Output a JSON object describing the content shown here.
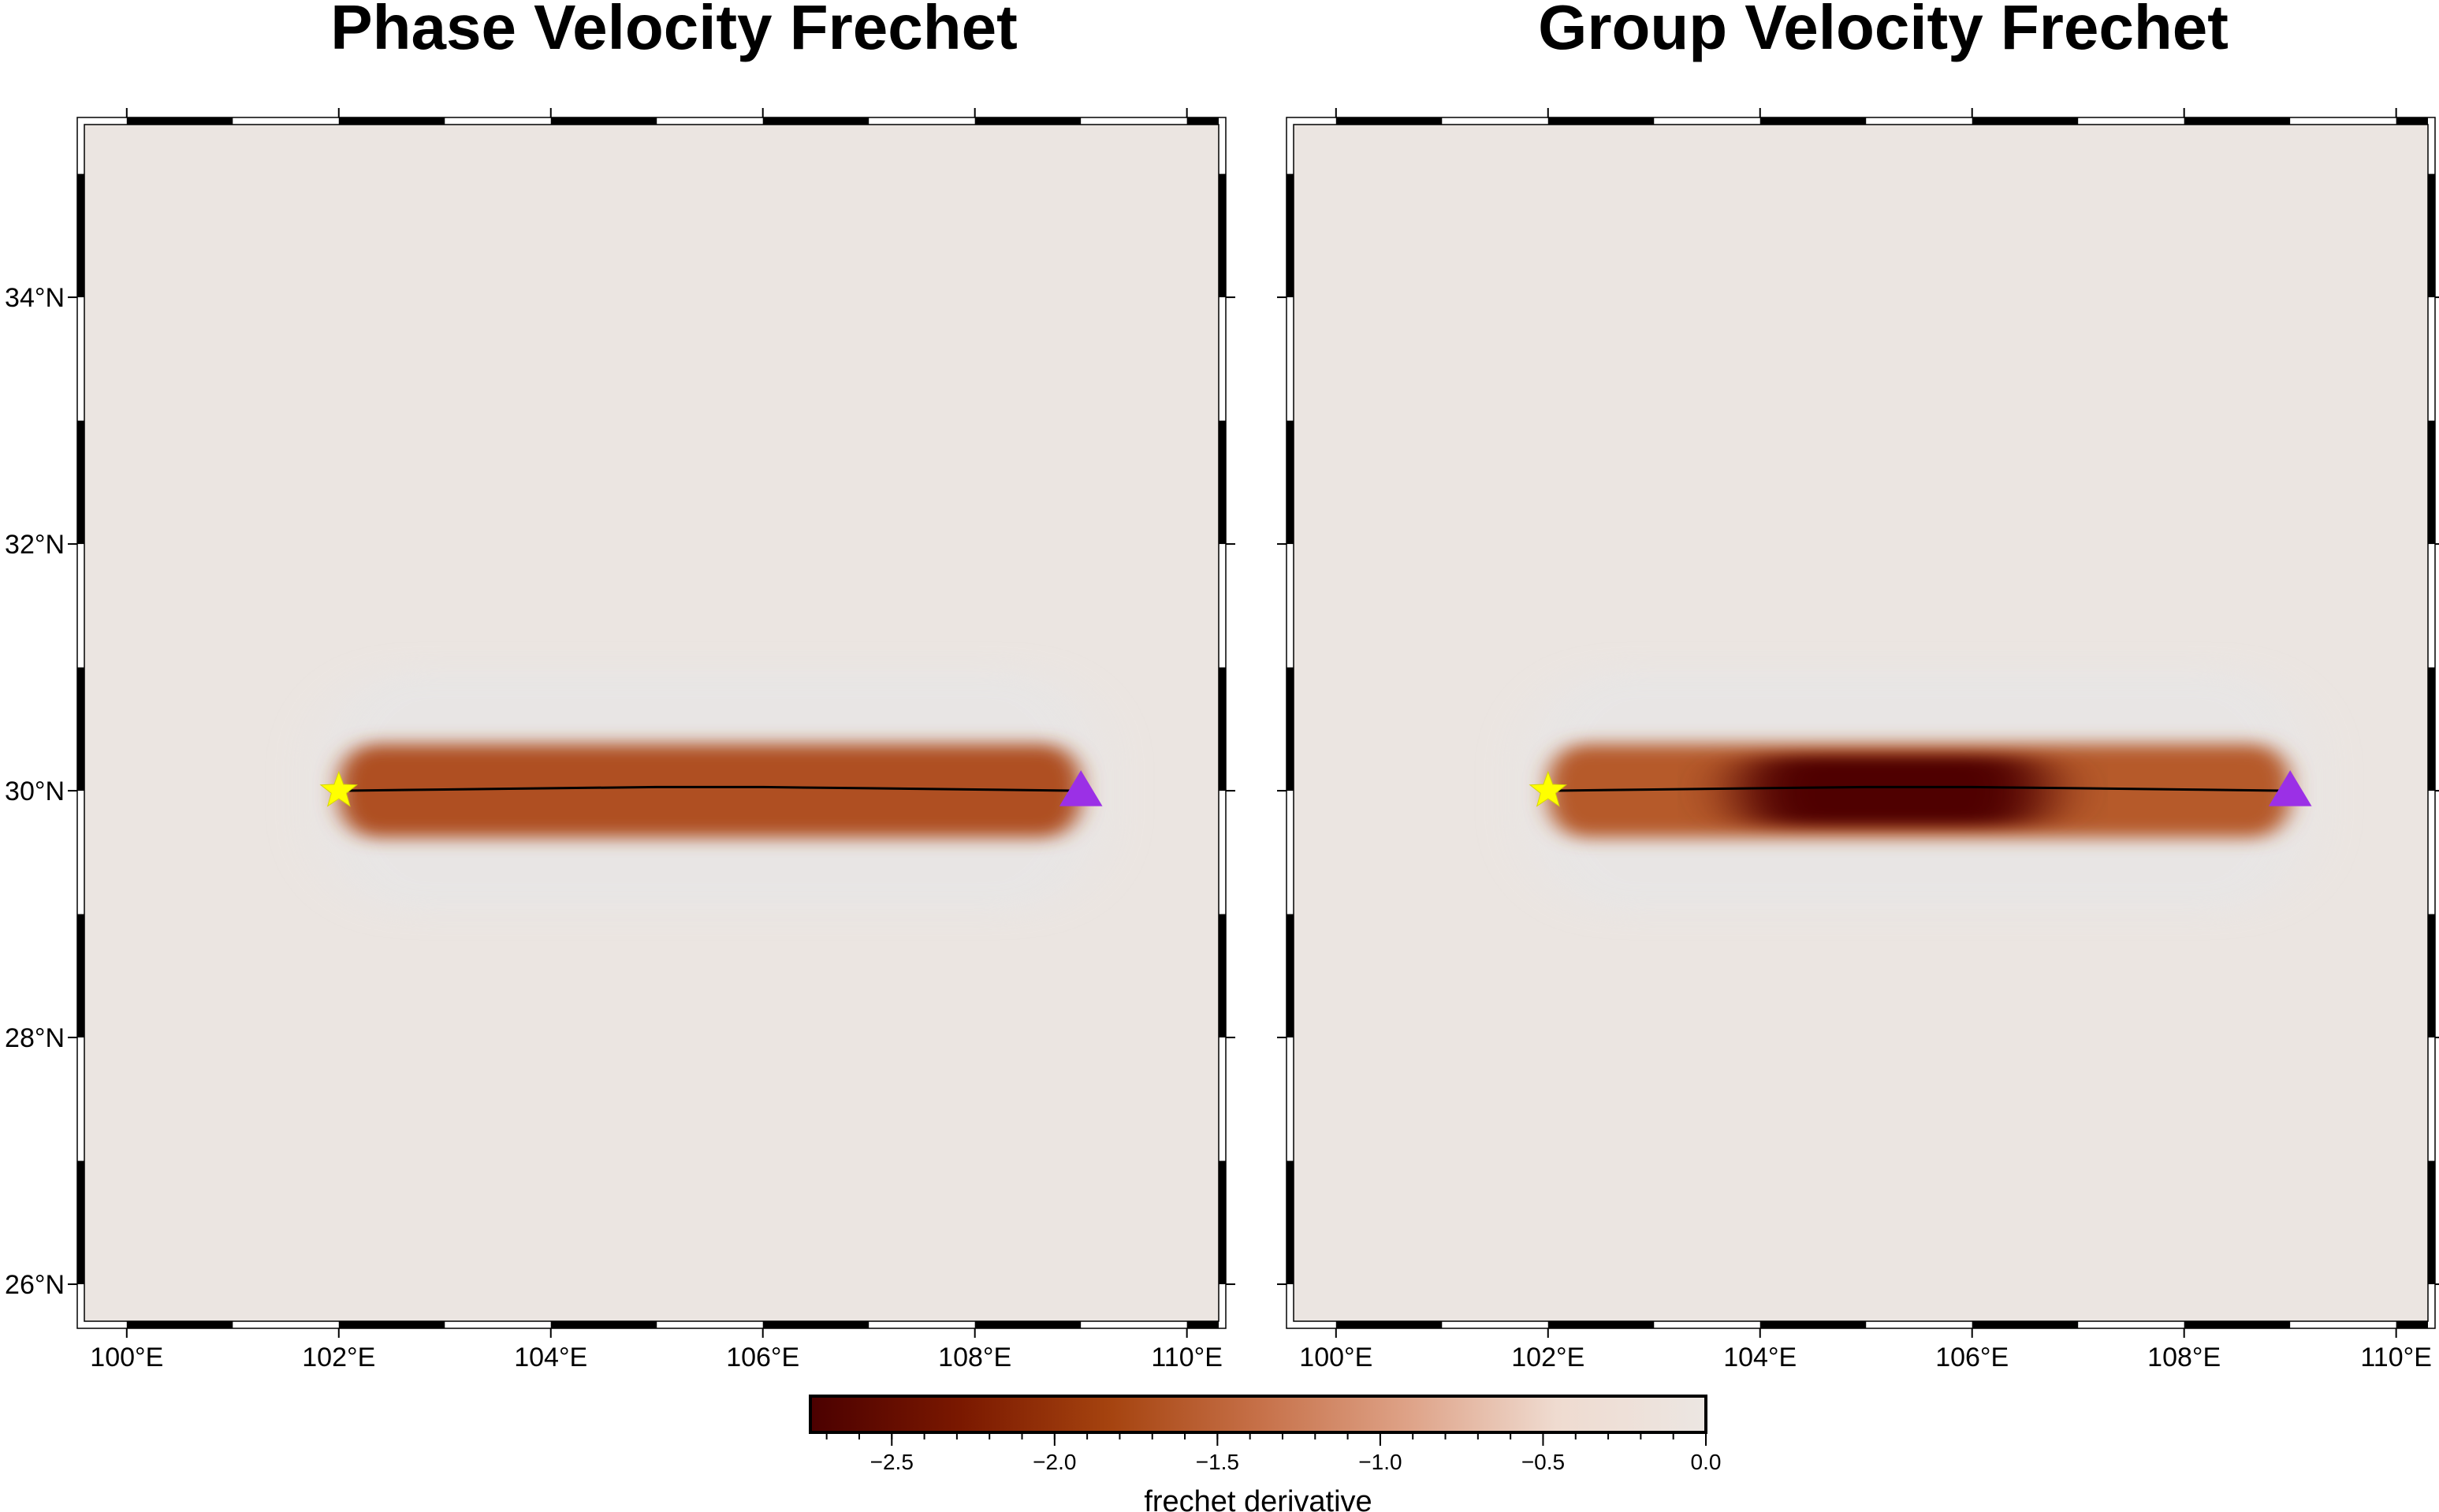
{
  "chart_data": [
    {
      "type": "heatmap",
      "title": "Phase Velocity Frechet",
      "x_ticks": [
        "100°E",
        "102°E",
        "104°E",
        "106°E",
        "108°E",
        "110°E"
      ],
      "y_ticks": [
        "26°N",
        "28°N",
        "30°N",
        "32°N",
        "34°N"
      ],
      "x_tick_values": [
        100,
        102,
        104,
        106,
        108,
        110
      ],
      "y_tick_values": [
        26,
        28,
        30,
        32,
        34
      ],
      "xlim": [
        99.6,
        110.3
      ],
      "ylim": [
        25.7,
        35.4
      ],
      "source": {
        "lon": 102,
        "lat": 30,
        "symbol": "star",
        "color": "#ffff00"
      },
      "receiver": {
        "lon": 109,
        "lat": 30,
        "symbol": "triangle",
        "color": "#9b30e6"
      },
      "ray_path": {
        "lon": [
          102,
          103,
          104,
          105,
          105.5,
          106,
          107,
          108,
          109
        ],
        "lat": [
          30,
          30.01,
          30.02,
          30.03,
          30.03,
          30.03,
          30.02,
          30.01,
          30
        ]
      },
      "anomaly": {
        "lon_range": [
          102,
          109
        ],
        "lat_center": 30,
        "lat_half_width": 0.38,
        "min_value": -1.7,
        "peak_lon_range": [
          102.5,
          108.5
        ]
      },
      "grid": false
    },
    {
      "type": "heatmap",
      "title": "Group Velocity Frechet",
      "x_ticks": [
        "100°E",
        "102°E",
        "104°E",
        "106°E",
        "108°E",
        "110°E"
      ],
      "y_ticks": [
        "26°N",
        "28°N",
        "30°N",
        "32°N",
        "34°N"
      ],
      "x_tick_values": [
        100,
        102,
        104,
        106,
        108,
        110
      ],
      "y_tick_values": [
        26,
        28,
        30,
        32,
        34
      ],
      "xlim": [
        99.6,
        110.3
      ],
      "ylim": [
        25.7,
        35.4
      ],
      "source": {
        "lon": 102,
        "lat": 30,
        "symbol": "star",
        "color": "#ffff00"
      },
      "receiver": {
        "lon": 109,
        "lat": 30,
        "symbol": "triangle",
        "color": "#9b30e6"
      },
      "ray_path": {
        "lon": [
          102,
          103,
          104,
          105,
          105.5,
          106,
          107,
          108,
          109
        ],
        "lat": [
          30,
          30.01,
          30.02,
          30.03,
          30.03,
          30.03,
          30.02,
          30.01,
          30
        ]
      },
      "anomaly": {
        "lon_range": [
          102,
          109
        ],
        "lat_center": 30,
        "lat_half_width": 0.38,
        "min_value": -1.6,
        "core_lon_range": [
          103.8,
          106.7
        ],
        "core_min_value": -2.7
      },
      "grid": false
    }
  ],
  "colorbar": {
    "label": "frechet derivative",
    "range": [
      -2.75,
      0.0
    ],
    "tick_values": [
      -2.5,
      -2.0,
      -1.5,
      -1.0,
      -0.5,
      0.0
    ],
    "tick_labels": [
      "−2.5",
      "−2.0",
      "−1.5",
      "−1.0",
      "−0.5",
      "0.0"
    ],
    "colors": [
      "#4b0000",
      "#7a1800",
      "#a5430f",
      "#c67048",
      "#dea287",
      "#efdbd0",
      "#ece6e2"
    ],
    "background_color": "#ebe5e1"
  }
}
